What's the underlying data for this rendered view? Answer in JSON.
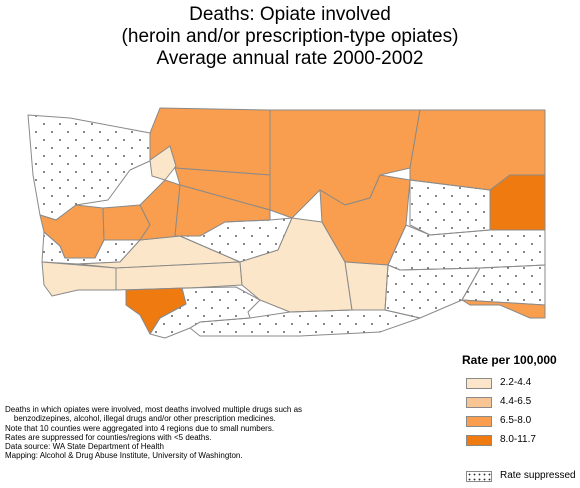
{
  "title": {
    "line1": "Deaths: Opiate involved",
    "line2": "(heroin and/or prescription-type opiates)",
    "line3": "Average annual rate 2000-2002"
  },
  "colors": {
    "c1": "#fbe6c9",
    "c2": "#f9c494",
    "c3": "#f89e4e",
    "c4": "#ee7a10",
    "suppressed": "#ffffff",
    "border": "#8a8a8a"
  },
  "legend": {
    "title": "Rate per 100,000",
    "items": [
      {
        "label": "2.2-4.4",
        "color": "#fbe6c9"
      },
      {
        "label": "4.4-6.5",
        "color": "#f9c494"
      },
      {
        "label": "6.5-8.0",
        "color": "#f89e4e"
      },
      {
        "label": "8.0-11.7",
        "color": "#ee7a10"
      }
    ],
    "suppressed_label": "Rate suppressed"
  },
  "notes": [
    "Deaths in which opiates were involved, most deaths involved multiple drugs such as",
    "    benzodizepines, alcohol, illegal drugs and/or other prescription medicines.",
    "Note that 10 counties were aggregated into 4 regions due to small numbers.",
    "Rates are suppressed for counties/regions with <5 deaths.",
    "Data source: WA State Department of Health",
    "Mapping: Alcohol & Drug Abuse Institute, University of Washington."
  ]
}
